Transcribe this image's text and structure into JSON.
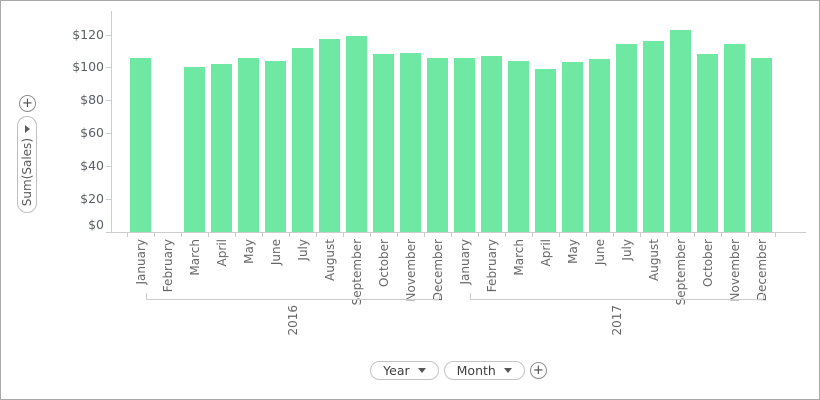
{
  "left_panel": {
    "add_button_glyph": "+",
    "value_field": {
      "label": "Sum(Sales)"
    }
  },
  "bottom_panel": {
    "fields": [
      {
        "label": "Year"
      },
      {
        "label": "Month"
      }
    ],
    "add_button_glyph": "+"
  },
  "icons": {
    "left_add": "plus-icon",
    "value_field_arrow": "chevron-right-icon",
    "field_dropdown_arrow": "chevron-down-icon",
    "bottom_add": "plus-icon"
  },
  "chart_data": {
    "type": "bar",
    "title": "",
    "xlabel": "",
    "ylabel": "Sum(Sales)",
    "y_tick_labels": [
      "$120",
      "$100",
      "$80",
      "$60",
      "$40",
      "$20",
      "$0"
    ],
    "y_tick_values": [
      120,
      100,
      80,
      60,
      40,
      20,
      0
    ],
    "ylim": [
      0,
      134
    ],
    "grid": false,
    "legend": false,
    "bar_color": "#6fe8a3",
    "axis_color": "#cccccc",
    "label_color": "#676767",
    "categories": [
      "January",
      "February",
      "March",
      "April",
      "May",
      "June",
      "July",
      "August",
      "September",
      "October",
      "November",
      "December"
    ],
    "groups": [
      {
        "label": "2016",
        "values": [
          106,
          0,
          100,
          102,
          106,
          104,
          112,
          117,
          119,
          108,
          109,
          106
        ]
      },
      {
        "label": "2017",
        "values": [
          106,
          107,
          104,
          99,
          103,
          105,
          114,
          116,
          123,
          108,
          114,
          106
        ]
      }
    ]
  }
}
